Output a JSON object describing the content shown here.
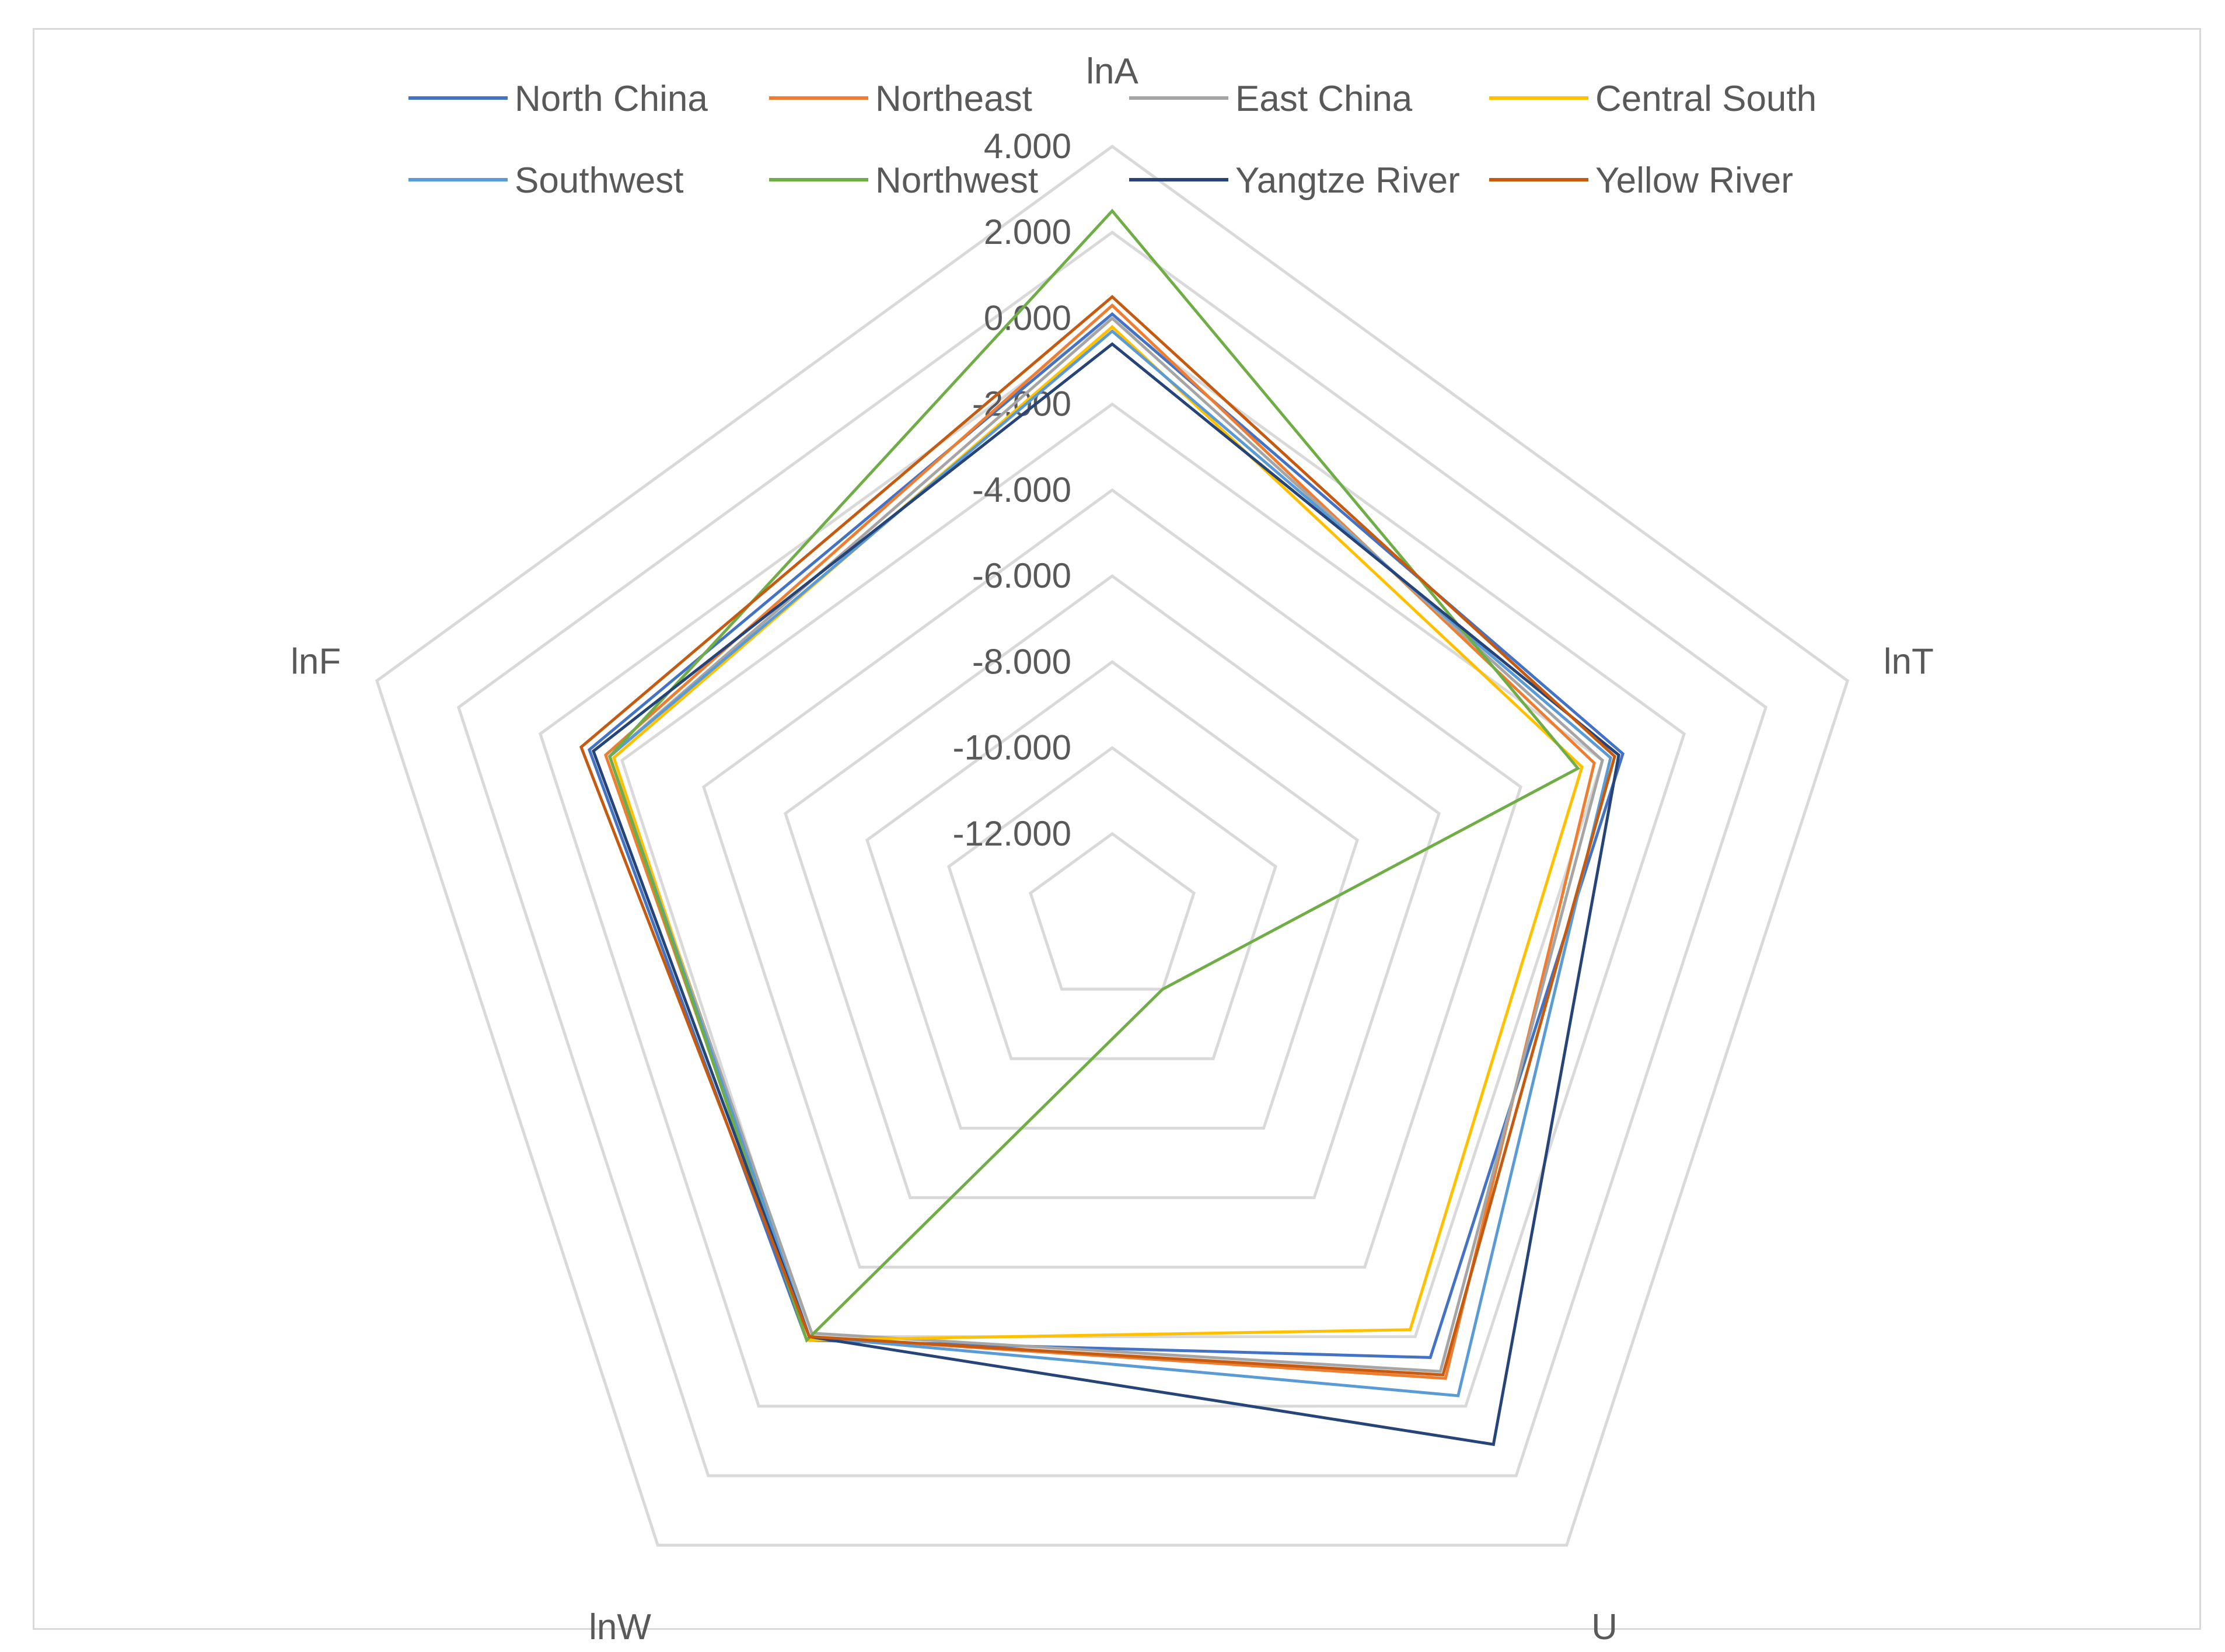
{
  "chart_data": {
    "type": "radar",
    "axes": [
      "lnA",
      "lnT",
      "U",
      "lnW",
      "lnF"
    ],
    "r_ticks": [
      "4.000",
      "2.000",
      "0.000",
      "-2.000",
      "-4.000",
      "-6.000",
      "-8.000",
      "-10.000",
      "-12.000"
    ],
    "rlim": [
      -14,
      4
    ],
    "grid": true,
    "legend_position": "top",
    "series": [
      {
        "name": "North China",
        "color": "#4472c4",
        "values": [
          0.1,
          -1.5,
          -1.4,
          -1.9,
          -1.2
        ]
      },
      {
        "name": "Northeast",
        "color": "#ed7d31",
        "values": [
          0.3,
          -2.2,
          -0.8,
          -2.0,
          -1.6
        ]
      },
      {
        "name": "East China",
        "color": "#a5a5a5",
        "values": [
          0.0,
          -2.0,
          -1.0,
          -2.1,
          -1.7
        ]
      },
      {
        "name": "Central South",
        "color": "#ffc000",
        "values": [
          -0.2,
          -2.5,
          -2.2,
          -1.9,
          -1.8
        ]
      },
      {
        "name": "Southwest",
        "color": "#5b9bd5",
        "values": [
          -0.3,
          -1.8,
          -0.3,
          -2.0,
          -1.7
        ]
      },
      {
        "name": "Northwest",
        "color": "#70ad47",
        "values": [
          2.5,
          -2.6,
          -12.0,
          -1.9,
          -1.7
        ]
      },
      {
        "name": "Yangtze River",
        "color": "#264478",
        "values": [
          -0.6,
          -1.6,
          1.1,
          -2.0,
          -1.3
        ]
      },
      {
        "name": "Yellow River",
        "color": "#c55a11",
        "values": [
          0.5,
          -1.7,
          -0.9,
          -2.0,
          -1.0
        ]
      }
    ]
  }
}
